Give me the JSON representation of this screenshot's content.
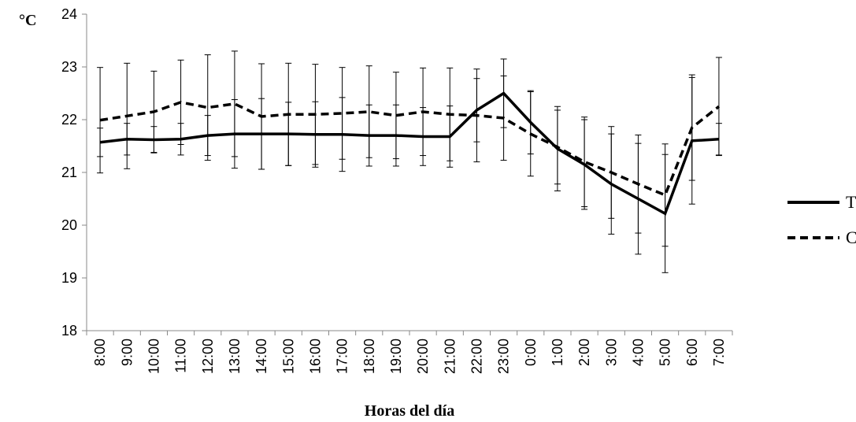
{
  "chart_data": {
    "type": "line",
    "ylabel": "°C",
    "xlabel": "Horas del día",
    "categories": [
      "8:00",
      "9:00",
      "10:00",
      "11:00",
      "12:00",
      "13:00",
      "14:00",
      "15:00",
      "16:00",
      "17:00",
      "18:00",
      "19:00",
      "20:00",
      "21:00",
      "22:00",
      "23:00",
      "0:00",
      "1:00",
      "2:00",
      "3:00",
      "4:00",
      "5:00",
      "6:00",
      "7:00"
    ],
    "ylim": [
      18,
      24
    ],
    "yticks": [
      18,
      19,
      20,
      21,
      22,
      23,
      24
    ],
    "series": [
      {
        "name": "TC",
        "color": "#000000",
        "dash": "solid",
        "values": [
          21.57,
          21.63,
          21.62,
          21.63,
          21.7,
          21.73,
          21.73,
          21.73,
          21.72,
          21.72,
          21.7,
          21.7,
          21.68,
          21.68,
          22.18,
          22.5,
          21.95,
          21.45,
          21.15,
          20.78,
          20.5,
          20.22,
          21.6,
          21.63
        ],
        "error": [
          0.27,
          0.3,
          0.25,
          0.3,
          0.38,
          0.65,
          0.67,
          0.6,
          0.62,
          0.7,
          0.58,
          0.58,
          0.55,
          0.58,
          0.6,
          0.65,
          0.6,
          0.8,
          0.85,
          0.95,
          1.05,
          1.12,
          1.2,
          0.3
        ]
      },
      {
        "name": "CC",
        "color": "#000000",
        "dash": "dashed",
        "values": [
          21.99,
          22.07,
          22.15,
          22.33,
          22.23,
          22.3,
          22.06,
          22.1,
          22.1,
          22.12,
          22.15,
          22.08,
          22.15,
          22.1,
          22.08,
          22.03,
          21.73,
          21.48,
          21.2,
          21.0,
          20.78,
          20.57,
          21.85,
          22.25
        ],
        "error": [
          1.0,
          1.0,
          0.77,
          0.8,
          1.0,
          1.0,
          1.0,
          0.97,
          0.95,
          0.87,
          0.87,
          0.82,
          0.83,
          0.88,
          0.88,
          0.8,
          0.8,
          0.7,
          0.85,
          0.87,
          0.93,
          0.97,
          1.0,
          0.93
        ]
      }
    ]
  }
}
